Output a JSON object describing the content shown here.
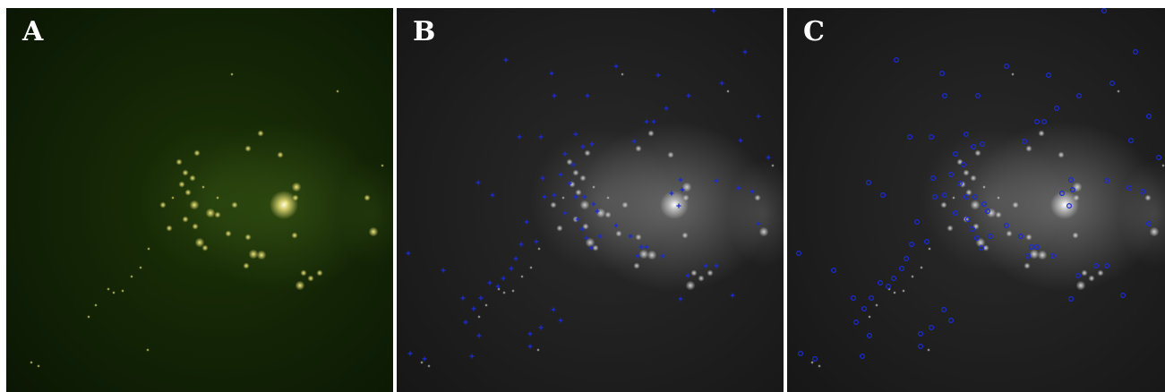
{
  "panels": [
    {
      "id": "panel-a",
      "label": "A",
      "style": "fluorescence",
      "colors": {
        "bg_center": "#1c3207",
        "bg_edge": "#0a1604",
        "halo": "#3f5f18",
        "spot": "#f2e67a",
        "bright_core": "#fffde0"
      }
    },
    {
      "id": "panel-b",
      "label": "B",
      "style": "grayscale-crosses",
      "colors": {
        "bg_center": "#2a2a2a",
        "bg_edge": "#161616",
        "halo": "#9a9a9a",
        "spot": "#cfcfcf",
        "bright_core": "#ffffff",
        "marker": "#1a2bd6"
      }
    },
    {
      "id": "panel-c",
      "label": "C",
      "style": "grayscale-circles",
      "colors": {
        "bg_center": "#2a2a2a",
        "bg_edge": "#161616",
        "halo": "#9a9a9a",
        "spot": "#d4d4d4",
        "bright_core": "#ffffff",
        "marker": "#1a2bd6"
      }
    }
  ]
}
